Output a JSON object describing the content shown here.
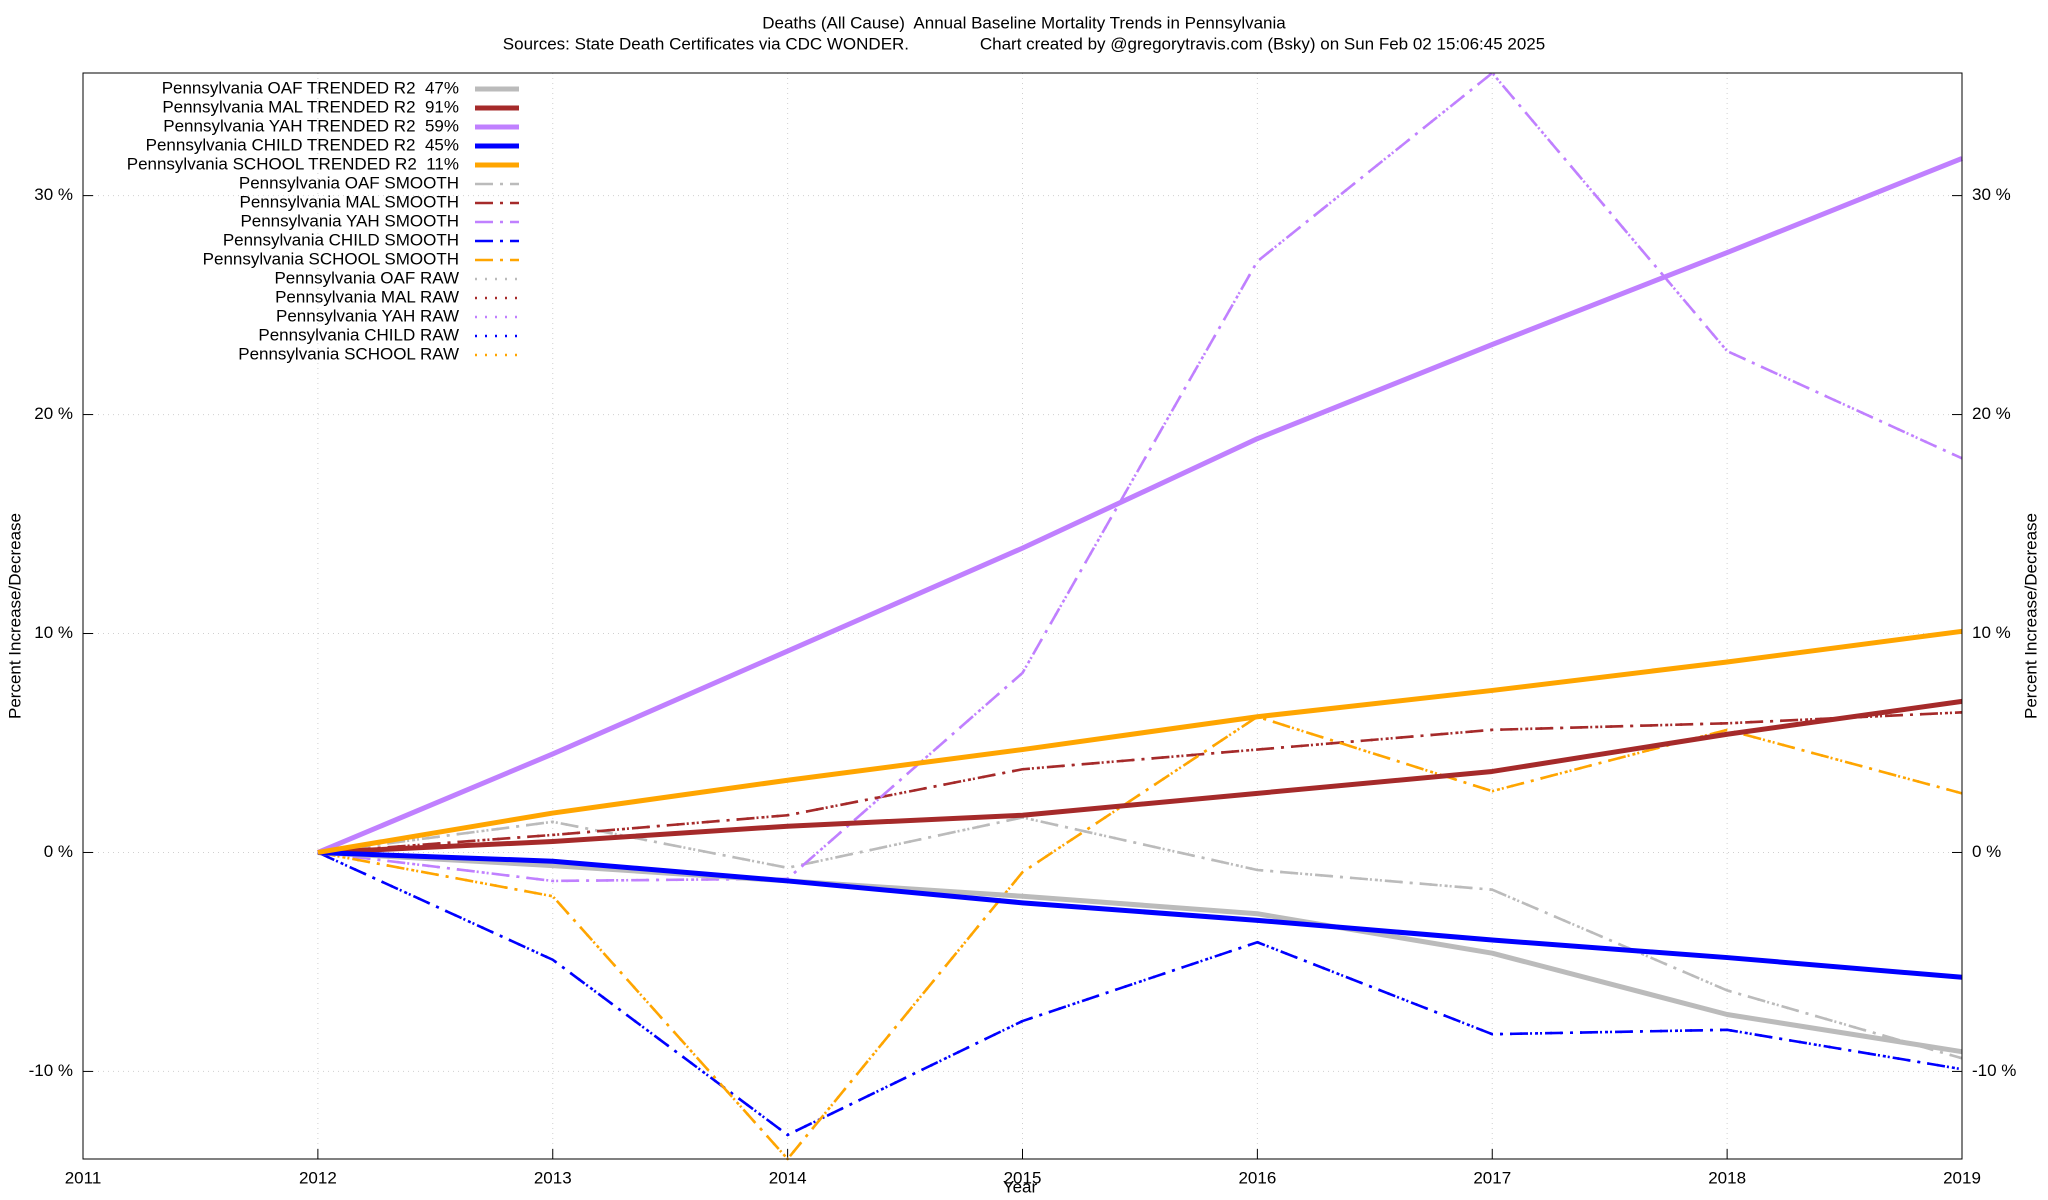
{
  "chart_data": {
    "type": "line",
    "title": "Deaths (All Cause)  Annual Baseline Mortality Trends in Pennsylvania",
    "subtitle": "Sources: State Death Certificates via CDC WONDER.               Chart created by @gregorytravis.com (Bsky) on Sun Feb 02 15:06:45 2025",
    "x_label": "Year",
    "y_label": "Percent Increase/Decrease",
    "y2_label": "Percent Increase/Decrease",
    "x": [
      2012,
      2013,
      2014,
      2015,
      2016,
      2017,
      2018,
      2019
    ],
    "xlim": [
      2011,
      2019
    ],
    "xticks": [
      2011,
      2012,
      2013,
      2014,
      2015,
      2016,
      2017,
      2018,
      2019
    ],
    "ylim": [
      -14,
      35.6
    ],
    "yticks": [
      {
        "value": -10,
        "label": "-10 %"
      },
      {
        "value": 0,
        "label": "0 %"
      },
      {
        "value": 10,
        "label": "10 %"
      },
      {
        "value": 20,
        "label": "20 %"
      },
      {
        "value": 30,
        "label": "30 %"
      }
    ],
    "y2lim": [
      -14,
      35.6
    ],
    "y2ticks": [
      {
        "value": -10,
        "label": "-10 %"
      },
      {
        "value": 0,
        "label": "0 %"
      },
      {
        "value": 10,
        "label": "10 %"
      },
      {
        "value": 20,
        "label": "20 %"
      },
      {
        "value": 30,
        "label": "30 %"
      }
    ],
    "grid": true,
    "legend": "top-left",
    "series": [
      {
        "name": "Pennsylvania OAF TRENDED R2  47%",
        "color": "#bbbbbb",
        "style": "solid",
        "values": [
          0,
          -0.6,
          -1.3,
          -2.0,
          -2.8,
          -4.6,
          -7.4,
          -9.1
        ]
      },
      {
        "name": "Pennsylvania MAL TRENDED R2  91%",
        "color": "#a52a2a",
        "style": "solid",
        "values": [
          0,
          0.5,
          1.2,
          1.7,
          2.7,
          3.7,
          5.4,
          6.9
        ]
      },
      {
        "name": "Pennsylvania YAH TRENDED R2  59%",
        "color": "#c080ff",
        "style": "solid",
        "values": [
          0,
          4.5,
          9.2,
          13.9,
          18.9,
          23.2,
          27.4,
          31.7
        ]
      },
      {
        "name": "Pennsylvania CHILD TRENDED R2  45%",
        "color": "#0000ff",
        "style": "solid",
        "values": [
          0,
          -0.4,
          -1.3,
          -2.3,
          -3.1,
          -4.0,
          -4.8,
          -5.7
        ]
      },
      {
        "name": "Pennsylvania SCHOOL TRENDED R2  11%",
        "color": "#ffa500",
        "style": "solid",
        "values": [
          0,
          1.8,
          3.3,
          4.7,
          6.2,
          7.4,
          8.7,
          10.1
        ]
      },
      {
        "name": "Pennsylvania OAF SMOOTH",
        "color": "#bbbbbb",
        "style": "dashdot",
        "values": [
          0,
          1.4,
          -0.7,
          1.6,
          -0.8,
          -1.7,
          -6.3,
          -9.4
        ]
      },
      {
        "name": "Pennsylvania MAL SMOOTH",
        "color": "#a52a2a",
        "style": "dashdot",
        "values": [
          0,
          0.8,
          1.7,
          3.8,
          4.7,
          5.6,
          5.9,
          6.4
        ]
      },
      {
        "name": "Pennsylvania YAH SMOOTH",
        "color": "#c080ff",
        "style": "dashdot",
        "values": [
          0,
          -1.3,
          -1.2,
          8.2,
          27.0,
          35.6,
          22.9,
          18.0
        ]
      },
      {
        "name": "Pennsylvania CHILD SMOOTH",
        "color": "#0000ff",
        "style": "dashdot",
        "values": [
          0,
          -4.9,
          -12.9,
          -7.7,
          -4.1,
          -8.3,
          -8.1,
          -9.9
        ]
      },
      {
        "name": "Pennsylvania SCHOOL SMOOTH",
        "color": "#ffa500",
        "style": "dashdot",
        "values": [
          0,
          -2.0,
          -14.0,
          -0.9,
          6.2,
          2.8,
          5.6,
          2.7
        ]
      },
      {
        "name": "Pennsylvania OAF RAW",
        "color": "#bbbbbb",
        "style": "dotted",
        "values": [
          0,
          1.4,
          -0.7,
          1.6,
          -0.8,
          -1.7,
          -6.3,
          -9.4
        ]
      },
      {
        "name": "Pennsylvania MAL RAW",
        "color": "#a52a2a",
        "style": "dotted",
        "values": [
          0,
          0.8,
          1.7,
          3.8,
          4.7,
          5.6,
          5.9,
          6.4
        ]
      },
      {
        "name": "Pennsylvania YAH RAW",
        "color": "#c080ff",
        "style": "dotted",
        "values": [
          0,
          -1.3,
          -1.2,
          8.2,
          27.0,
          35.6,
          22.9,
          18.0
        ]
      },
      {
        "name": "Pennsylvania CHILD RAW",
        "color": "#0000ff",
        "style": "dotted",
        "values": [
          0,
          -4.9,
          -12.9,
          -7.7,
          -4.1,
          -8.3,
          -8.1,
          -9.9
        ]
      },
      {
        "name": "Pennsylvania SCHOOL RAW",
        "color": "#ffa500",
        "style": "dotted",
        "values": [
          0,
          -2.0,
          -14.0,
          -0.9,
          6.2,
          2.8,
          5.6,
          2.7
        ]
      }
    ]
  }
}
